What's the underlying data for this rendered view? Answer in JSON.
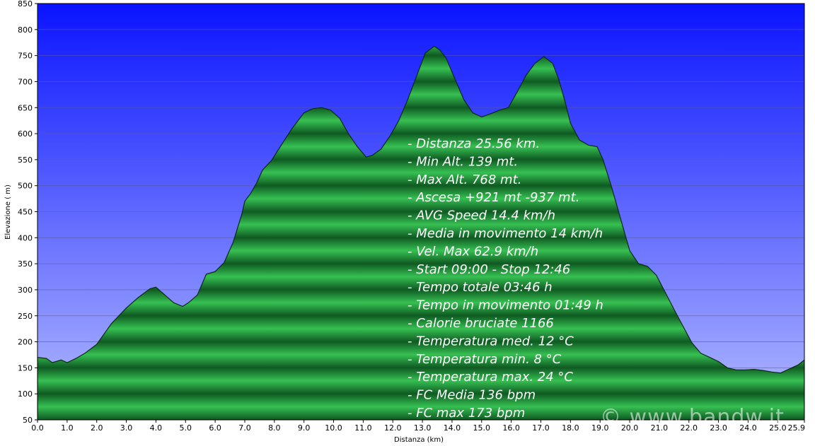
{
  "chart_data": {
    "type": "area",
    "title": "",
    "xlabel": "Distanza   (km)",
    "ylabel": "Elevazione ( m)",
    "xlim": [
      0,
      25.9
    ],
    "ylim": [
      50,
      850
    ],
    "x_ticks": [
      "0.0",
      "1.0",
      "2.0",
      "3.0",
      "4.0",
      "5.0",
      "6.0",
      "7.0",
      "8.0",
      "9.0",
      "10.0",
      "11.0",
      "12.0",
      "13.0",
      "14.0",
      "15.0",
      "16.0",
      "17.0",
      "18.0",
      "19.0",
      "20.0",
      "21.0",
      "22.0",
      "23.0",
      "24.0",
      "25.0",
      "25.9"
    ],
    "y_ticks": [
      "850",
      "800",
      "750",
      "700",
      "650",
      "600",
      "550",
      "500",
      "450",
      "400",
      "350",
      "300",
      "250",
      "200",
      "150",
      "100",
      "50"
    ],
    "grid": true,
    "series": [
      {
        "x": [
          0.0,
          0.3,
          0.5,
          0.8,
          1.0,
          1.3,
          1.6,
          2.0,
          2.5,
          3.0,
          3.4,
          3.8,
          4.0,
          4.3,
          4.6,
          4.9,
          5.1,
          5.4,
          5.7,
          6.0,
          6.3,
          6.6,
          6.9,
          7.0,
          7.2,
          7.4,
          7.6,
          7.9,
          8.2,
          8.6,
          9.0,
          9.3,
          9.6,
          9.9,
          10.2,
          10.5,
          10.8,
          11.1,
          11.3,
          11.6,
          11.9,
          12.2,
          12.5,
          12.8,
          13.1,
          13.4,
          13.6,
          13.8,
          14.1,
          14.4,
          14.7,
          15.0,
          15.3,
          15.6,
          15.9,
          16.2,
          16.5,
          16.8,
          17.1,
          17.4,
          17.6,
          17.8,
          18.0,
          18.3,
          18.6,
          18.9,
          19.1,
          19.4,
          19.7,
          20.0,
          20.3,
          20.6,
          20.9,
          21.2,
          21.5,
          21.8,
          22.1,
          22.4,
          22.7,
          23.0,
          23.3,
          23.6,
          23.9,
          24.2,
          24.5,
          24.8,
          25.1,
          25.4,
          25.7,
          25.9
        ],
        "y": [
          170,
          168,
          160,
          165,
          160,
          168,
          178,
          195,
          235,
          265,
          285,
          302,
          305,
          290,
          275,
          268,
          275,
          290,
          330,
          335,
          352,
          390,
          445,
          470,
          485,
          505,
          530,
          548,
          575,
          610,
          640,
          648,
          650,
          645,
          630,
          600,
          575,
          555,
          558,
          570,
          595,
          625,
          665,
          710,
          755,
          768,
          760,
          745,
          705,
          665,
          640,
          632,
          638,
          645,
          650,
          680,
          712,
          735,
          748,
          735,
          705,
          665,
          620,
          588,
          578,
          575,
          550,
          495,
          435,
          375,
          350,
          345,
          328,
          295,
          262,
          230,
          198,
          178,
          170,
          162,
          150,
          146,
          146,
          147,
          145,
          142,
          140,
          148,
          156,
          165
        ]
      }
    ],
    "stats": [
      "- Distanza 25.56 km.",
      "- Min Alt. 139 mt.",
      "- Max Alt. 768 mt.",
      "- Ascesa +921 mt -937 mt.",
      "- AVG Speed 14.4 km/h",
      "- Media in movimento 14 km/h",
      "- Vel. Max 62.9 km/h",
      "- Start 09:00 - Stop 12:46",
      "- Tempo totale 03:46 h",
      "- Tempo in movimento 01:49 h",
      "- Calorie bruciate 1166",
      "- Temperatura med. 12 °C",
      "- Temperatura min. 8 °C",
      "- Temperatura max. 24 °C",
      "- FC Media 136 bpm",
      "- FC max 173 bpm"
    ],
    "watermark": "© www.bandw.it",
    "colors": {
      "sky_top": "#0a14ff",
      "sky_bottom": "#b4bcff",
      "area_dark": "#0d4a1e",
      "area_light": "#2fb84a",
      "outline": "#0b2a10"
    }
  }
}
